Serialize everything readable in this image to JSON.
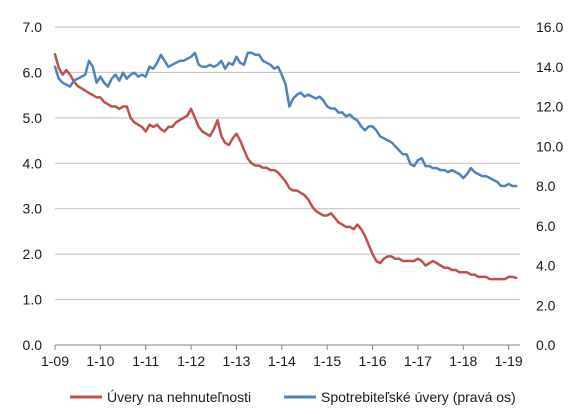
{
  "chart_data": {
    "type": "line",
    "x_tick_labels": [
      "1-09",
      "1-10",
      "1-11",
      "1-12",
      "1-13",
      "1-14",
      "1-15",
      "1-16",
      "1-17",
      "1-18",
      "1-19"
    ],
    "y_left": {
      "ticks": [
        "0.0",
        "1.0",
        "2.0",
        "3.0",
        "4.0",
        "5.0",
        "6.0",
        "7.0"
      ],
      "ylim": [
        0,
        7
      ]
    },
    "y_right": {
      "ticks": [
        "0.0",
        "2.0",
        "4.0",
        "6.0",
        "8.0",
        "10.0",
        "12.0",
        "14.0",
        "16.0"
      ],
      "ylim": [
        0,
        16
      ]
    },
    "grid": true,
    "legend_position": "bottom",
    "series": [
      {
        "name": "Úvery na nehnuteľnosti",
        "axis": "left",
        "color": "#c0504d",
        "points": [
          [
            "2009-01",
            6.4
          ],
          [
            "2009-02",
            6.1
          ],
          [
            "2009-03",
            5.95
          ],
          [
            "2009-04",
            6.05
          ],
          [
            "2009-05",
            5.95
          ],
          [
            "2009-06",
            5.8
          ],
          [
            "2009-07",
            5.7
          ],
          [
            "2009-08",
            5.65
          ],
          [
            "2009-09",
            5.6
          ],
          [
            "2009-10",
            5.55
          ],
          [
            "2009-11",
            5.5
          ],
          [
            "2009-12",
            5.45
          ],
          [
            "2010-01",
            5.45
          ],
          [
            "2010-02",
            5.35
          ],
          [
            "2010-03",
            5.3
          ],
          [
            "2010-04",
            5.25
          ],
          [
            "2010-05",
            5.25
          ],
          [
            "2010-06",
            5.2
          ],
          [
            "2010-07",
            5.25
          ],
          [
            "2010-08",
            5.25
          ],
          [
            "2010-09",
            5.0
          ],
          [
            "2010-10",
            4.9
          ],
          [
            "2010-11",
            4.85
          ],
          [
            "2010-12",
            4.8
          ],
          [
            "2011-01",
            4.7
          ],
          [
            "2011-02",
            4.85
          ],
          [
            "2011-03",
            4.8
          ],
          [
            "2011-04",
            4.85
          ],
          [
            "2011-05",
            4.75
          ],
          [
            "2011-06",
            4.7
          ],
          [
            "2011-07",
            4.8
          ],
          [
            "2011-08",
            4.8
          ],
          [
            "2011-09",
            4.9
          ],
          [
            "2011-10",
            4.95
          ],
          [
            "2011-11",
            5.0
          ],
          [
            "2011-12",
            5.05
          ],
          [
            "2012-01",
            5.2
          ],
          [
            "2012-02",
            5.0
          ],
          [
            "2012-03",
            4.8
          ],
          [
            "2012-04",
            4.7
          ],
          [
            "2012-05",
            4.65
          ],
          [
            "2012-06",
            4.6
          ],
          [
            "2012-07",
            4.75
          ],
          [
            "2012-08",
            4.95
          ],
          [
            "2012-09",
            4.6
          ],
          [
            "2012-10",
            4.45
          ],
          [
            "2012-11",
            4.4
          ],
          [
            "2012-12",
            4.55
          ],
          [
            "2013-01",
            4.65
          ],
          [
            "2013-02",
            4.5
          ],
          [
            "2013-03",
            4.3
          ],
          [
            "2013-04",
            4.1
          ],
          [
            "2013-05",
            4.0
          ],
          [
            "2013-06",
            3.95
          ],
          [
            "2013-07",
            3.95
          ],
          [
            "2013-08",
            3.9
          ],
          [
            "2013-09",
            3.9
          ],
          [
            "2013-10",
            3.85
          ],
          [
            "2013-11",
            3.85
          ],
          [
            "2013-12",
            3.8
          ],
          [
            "2014-01",
            3.7
          ],
          [
            "2014-02",
            3.6
          ],
          [
            "2014-03",
            3.45
          ],
          [
            "2014-04",
            3.4
          ],
          [
            "2014-05",
            3.4
          ],
          [
            "2014-06",
            3.35
          ],
          [
            "2014-07",
            3.3
          ],
          [
            "2014-08",
            3.2
          ],
          [
            "2014-09",
            3.05
          ],
          [
            "2014-10",
            2.95
          ],
          [
            "2014-11",
            2.9
          ],
          [
            "2014-12",
            2.85
          ],
          [
            "2015-01",
            2.85
          ],
          [
            "2015-02",
            2.9
          ],
          [
            "2015-03",
            2.8
          ],
          [
            "2015-04",
            2.7
          ],
          [
            "2015-05",
            2.65
          ],
          [
            "2015-06",
            2.6
          ],
          [
            "2015-07",
            2.6
          ],
          [
            "2015-08",
            2.55
          ],
          [
            "2015-09",
            2.65
          ],
          [
            "2015-10",
            2.55
          ],
          [
            "2015-11",
            2.4
          ],
          [
            "2015-12",
            2.2
          ],
          [
            "2016-01",
            2.0
          ],
          [
            "2016-02",
            1.85
          ],
          [
            "2016-03",
            1.8
          ],
          [
            "2016-04",
            1.9
          ],
          [
            "2016-05",
            1.95
          ],
          [
            "2016-06",
            1.95
          ],
          [
            "2016-07",
            1.9
          ],
          [
            "2016-08",
            1.9
          ],
          [
            "2016-09",
            1.85
          ],
          [
            "2016-10",
            1.85
          ],
          [
            "2016-11",
            1.85
          ],
          [
            "2016-12",
            1.85
          ],
          [
            "2017-01",
            1.9
          ],
          [
            "2017-02",
            1.85
          ],
          [
            "2017-03",
            1.75
          ],
          [
            "2017-04",
            1.8
          ],
          [
            "2017-05",
            1.85
          ],
          [
            "2017-06",
            1.8
          ],
          [
            "2017-07",
            1.75
          ],
          [
            "2017-08",
            1.7
          ],
          [
            "2017-09",
            1.7
          ],
          [
            "2017-10",
            1.65
          ],
          [
            "2017-11",
            1.65
          ],
          [
            "2017-12",
            1.6
          ],
          [
            "2018-01",
            1.6
          ],
          [
            "2018-02",
            1.6
          ],
          [
            "2018-03",
            1.55
          ],
          [
            "2018-04",
            1.55
          ],
          [
            "2018-05",
            1.5
          ],
          [
            "2018-06",
            1.5
          ],
          [
            "2018-07",
            1.5
          ],
          [
            "2018-08",
            1.45
          ],
          [
            "2018-09",
            1.45
          ],
          [
            "2018-10",
            1.45
          ],
          [
            "2018-11",
            1.45
          ],
          [
            "2018-12",
            1.45
          ],
          [
            "2019-01",
            1.5
          ],
          [
            "2019-02",
            1.5
          ],
          [
            "2019-03",
            1.48
          ]
        ]
      },
      {
        "name": "Spotrebiteľské úvery (pravá os)",
        "axis": "right",
        "color": "#4f81bd",
        "points": [
          [
            "2009-01",
            14.0
          ],
          [
            "2009-02",
            13.4
          ],
          [
            "2009-03",
            13.2
          ],
          [
            "2009-04",
            13.1
          ],
          [
            "2009-05",
            13.0
          ],
          [
            "2009-06",
            13.3
          ],
          [
            "2009-07",
            13.4
          ],
          [
            "2009-08",
            13.5
          ],
          [
            "2009-09",
            13.6
          ],
          [
            "2009-10",
            14.3
          ],
          [
            "2009-11",
            14.0
          ],
          [
            "2009-12",
            13.2
          ],
          [
            "2010-01",
            13.5
          ],
          [
            "2010-02",
            13.2
          ],
          [
            "2010-03",
            13.0
          ],
          [
            "2010-04",
            13.4
          ],
          [
            "2010-05",
            13.6
          ],
          [
            "2010-06",
            13.3
          ],
          [
            "2010-07",
            13.7
          ],
          [
            "2010-08",
            13.4
          ],
          [
            "2010-09",
            13.6
          ],
          [
            "2010-10",
            13.7
          ],
          [
            "2010-11",
            13.5
          ],
          [
            "2010-12",
            13.6
          ],
          [
            "2011-01",
            13.5
          ],
          [
            "2011-02",
            14.0
          ],
          [
            "2011-03",
            13.9
          ],
          [
            "2011-04",
            14.2
          ],
          [
            "2011-05",
            14.6
          ],
          [
            "2011-06",
            14.3
          ],
          [
            "2011-07",
            14.0
          ],
          [
            "2011-08",
            14.1
          ],
          [
            "2011-09",
            14.2
          ],
          [
            "2011-10",
            14.3
          ],
          [
            "2011-11",
            14.3
          ],
          [
            "2011-12",
            14.4
          ],
          [
            "2012-01",
            14.5
          ],
          [
            "2012-02",
            14.7
          ],
          [
            "2012-03",
            14.1
          ],
          [
            "2012-04",
            14.0
          ],
          [
            "2012-05",
            14.0
          ],
          [
            "2012-06",
            14.1
          ],
          [
            "2012-07",
            14.0
          ],
          [
            "2012-08",
            14.1
          ],
          [
            "2012-09",
            14.3
          ],
          [
            "2012-10",
            13.9
          ],
          [
            "2012-11",
            14.2
          ],
          [
            "2012-12",
            14.1
          ],
          [
            "2013-01",
            14.5
          ],
          [
            "2013-02",
            14.2
          ],
          [
            "2013-03",
            14.1
          ],
          [
            "2013-04",
            14.7
          ],
          [
            "2013-05",
            14.7
          ],
          [
            "2013-06",
            14.6
          ],
          [
            "2013-07",
            14.6
          ],
          [
            "2013-08",
            14.3
          ],
          [
            "2013-09",
            14.2
          ],
          [
            "2013-10",
            14.1
          ],
          [
            "2013-11",
            13.9
          ],
          [
            "2013-12",
            14.0
          ],
          [
            "2014-01",
            13.6
          ],
          [
            "2014-02",
            13.1
          ],
          [
            "2014-03",
            12.0
          ],
          [
            "2014-04",
            12.4
          ],
          [
            "2014-05",
            12.6
          ],
          [
            "2014-06",
            12.7
          ],
          [
            "2014-07",
            12.5
          ],
          [
            "2014-08",
            12.6
          ],
          [
            "2014-09",
            12.5
          ],
          [
            "2014-10",
            12.4
          ],
          [
            "2014-11",
            12.5
          ],
          [
            "2014-12",
            12.3
          ],
          [
            "2015-01",
            12.0
          ],
          [
            "2015-02",
            11.9
          ],
          [
            "2015-03",
            11.9
          ],
          [
            "2015-04",
            11.7
          ],
          [
            "2015-05",
            11.7
          ],
          [
            "2015-06",
            11.5
          ],
          [
            "2015-07",
            11.6
          ],
          [
            "2015-08",
            11.4
          ],
          [
            "2015-09",
            11.3
          ],
          [
            "2015-10",
            11.0
          ],
          [
            "2015-11",
            10.8
          ],
          [
            "2015-12",
            11.0
          ],
          [
            "2016-01",
            11.0
          ],
          [
            "2016-02",
            10.8
          ],
          [
            "2016-03",
            10.5
          ],
          [
            "2016-04",
            10.4
          ],
          [
            "2016-05",
            10.3
          ],
          [
            "2016-06",
            10.2
          ],
          [
            "2016-07",
            10.0
          ],
          [
            "2016-08",
            9.8
          ],
          [
            "2016-09",
            9.6
          ],
          [
            "2016-10",
            9.6
          ],
          [
            "2016-11",
            9.1
          ],
          [
            "2016-12",
            9.0
          ],
          [
            "2017-01",
            9.3
          ],
          [
            "2017-02",
            9.4
          ],
          [
            "2017-03",
            9.0
          ],
          [
            "2017-04",
            9.0
          ],
          [
            "2017-05",
            8.9
          ],
          [
            "2017-06",
            8.9
          ],
          [
            "2017-07",
            8.8
          ],
          [
            "2017-08",
            8.8
          ],
          [
            "2017-09",
            8.7
          ],
          [
            "2017-10",
            8.8
          ],
          [
            "2017-11",
            8.7
          ],
          [
            "2017-12",
            8.6
          ],
          [
            "2018-01",
            8.4
          ],
          [
            "2018-02",
            8.6
          ],
          [
            "2018-03",
            8.9
          ],
          [
            "2018-04",
            8.7
          ],
          [
            "2018-05",
            8.6
          ],
          [
            "2018-06",
            8.5
          ],
          [
            "2018-07",
            8.5
          ],
          [
            "2018-08",
            8.4
          ],
          [
            "2018-09",
            8.3
          ],
          [
            "2018-10",
            8.2
          ],
          [
            "2018-11",
            8.0
          ],
          [
            "2018-12",
            8.0
          ],
          [
            "2019-01",
            8.1
          ],
          [
            "2019-02",
            8.0
          ],
          [
            "2019-03",
            8.0
          ]
        ]
      }
    ]
  }
}
